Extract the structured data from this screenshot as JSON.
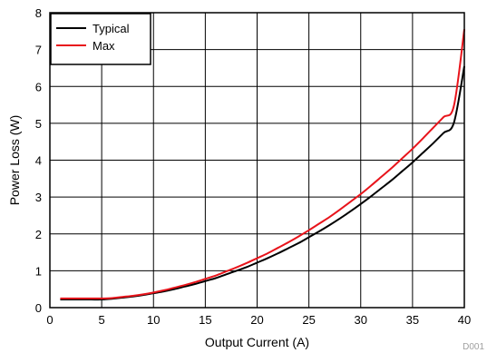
{
  "chart_data": {
    "type": "line",
    "title": "",
    "xlabel": "Output Current (A)",
    "ylabel": "Power Loss (W)",
    "xlim": [
      0,
      40
    ],
    "ylim": [
      0,
      8
    ],
    "x_ticks": [
      0,
      5,
      10,
      15,
      20,
      25,
      30,
      35,
      40
    ],
    "y_ticks": [
      0,
      1,
      2,
      3,
      4,
      5,
      6,
      7,
      8
    ],
    "grid": true,
    "legend_position": "top-left",
    "figure_id": "D001",
    "series": [
      {
        "name": "Typical",
        "color": "#000000",
        "x": [
          1,
          2,
          3,
          4,
          5,
          6,
          7,
          8,
          9,
          10,
          11,
          12,
          13,
          14,
          15,
          16,
          17,
          18,
          19,
          20,
          21,
          22,
          23,
          24,
          25,
          26,
          27,
          28,
          29,
          30,
          31,
          32,
          33,
          34,
          35,
          36,
          37,
          38,
          39,
          40
        ],
        "y": [
          0.22,
          0.22,
          0.22,
          0.22,
          0.22,
          0.24,
          0.27,
          0.3,
          0.34,
          0.39,
          0.44,
          0.5,
          0.57,
          0.64,
          0.72,
          0.8,
          0.9,
          1.0,
          1.1,
          1.22,
          1.34,
          1.47,
          1.61,
          1.75,
          1.91,
          2.07,
          2.24,
          2.42,
          2.61,
          2.81,
          3.02,
          3.24,
          3.46,
          3.7,
          3.94,
          4.2,
          4.46,
          4.74,
          5.02,
          6.55
        ]
      },
      {
        "name": "Max",
        "color": "#e8141b",
        "x": [
          1,
          2,
          3,
          4,
          5,
          6,
          7,
          8,
          9,
          10,
          11,
          12,
          13,
          14,
          15,
          16,
          17,
          18,
          19,
          20,
          21,
          22,
          23,
          24,
          25,
          26,
          27,
          28,
          29,
          30,
          31,
          32,
          33,
          34,
          35,
          36,
          37,
          38,
          39,
          40
        ],
        "y": [
          0.25,
          0.25,
          0.25,
          0.25,
          0.25,
          0.26,
          0.29,
          0.32,
          0.36,
          0.41,
          0.47,
          0.54,
          0.61,
          0.69,
          0.78,
          0.87,
          0.98,
          1.09,
          1.21,
          1.34,
          1.47,
          1.62,
          1.77,
          1.93,
          2.1,
          2.28,
          2.46,
          2.66,
          2.87,
          3.08,
          3.31,
          3.55,
          3.79,
          4.05,
          4.31,
          4.59,
          4.88,
          5.17,
          5.48,
          7.55
        ]
      }
    ]
  }
}
